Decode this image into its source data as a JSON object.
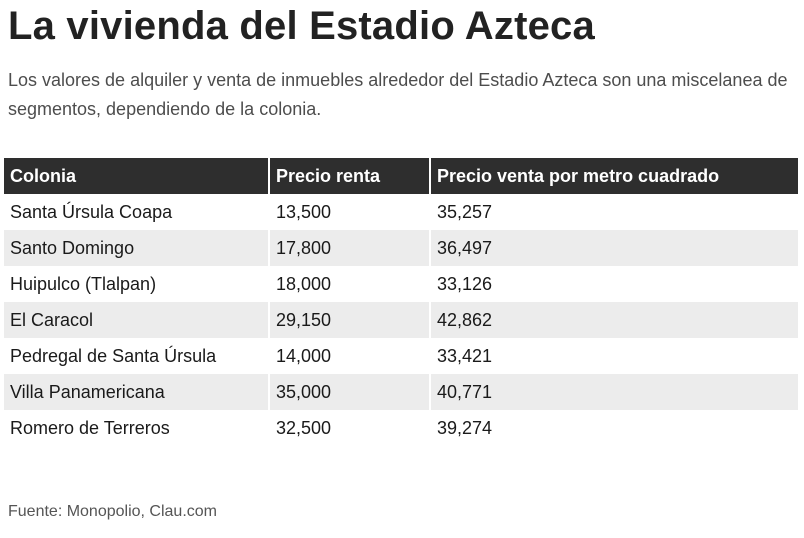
{
  "title": "La vivienda del Estadio Azteca",
  "subtitle": "Los valores de alquiler y venta de inmuebles alrededor del Estadio Azteca son una miscelanea de segmentos, dependiendo de la colonia.",
  "table": {
    "headers": [
      "Colonia",
      "Precio renta",
      "Precio venta por metro cuadrado"
    ],
    "rows": [
      [
        "Santa Úrsula Coapa",
        "13,500",
        "35,257"
      ],
      [
        "Santo Domingo",
        "17,800",
        "36,497"
      ],
      [
        "Huipulco (Tlalpan)",
        "18,000",
        "33,126"
      ],
      [
        "El Caracol",
        "29,150",
        "42,862"
      ],
      [
        "Pedregal de Santa Úrsula",
        "14,000",
        "33,421"
      ],
      [
        "Villa Panamericana",
        "35,000",
        "40,771"
      ],
      [
        "Romero de Terreros",
        "32,500",
        "39,274"
      ]
    ]
  },
  "source": "Fuente: Monopolio, Clau.com",
  "colors": {
    "header_bg": "#2e2e2e",
    "row_alt_bg": "#ececec"
  }
}
